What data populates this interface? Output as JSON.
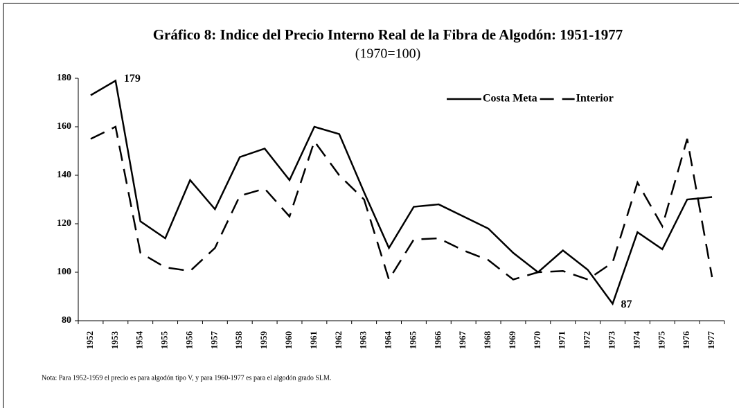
{
  "chart_data": {
    "type": "line",
    "title": "Gráfico 8:  Indice del Precio Interno Real de la Fibra de Algodón: 1951-1977",
    "subtitle": "(1970=100)",
    "categories": [
      "1952",
      "1953",
      "1954",
      "1955",
      "1956",
      "1957",
      "1958",
      "1959",
      "1960",
      "1961",
      "1962",
      "1963",
      "1964",
      "1965",
      "1966",
      "1967",
      "1968",
      "1969",
      "1970",
      "1971",
      "1972",
      "1973",
      "1974",
      "1975",
      "1976",
      "1977"
    ],
    "series": [
      {
        "name": "Costa Meta",
        "color": "#000000",
        "dash": "solid",
        "values": [
          173,
          179,
          121,
          114,
          138,
          126,
          147.5,
          151,
          138,
          160,
          157,
          133,
          110,
          127,
          128,
          123,
          118,
          108,
          100,
          109,
          101,
          87,
          116.5,
          109.5,
          130,
          131
        ]
      },
      {
        "name": "Interior",
        "color": "#000000",
        "dash": "dashed",
        "values": [
          155,
          160,
          108,
          102,
          100.5,
          110,
          131.5,
          134.5,
          123,
          154,
          140,
          130,
          97,
          113.5,
          114,
          109,
          105,
          97,
          100,
          100.5,
          97,
          104,
          137,
          119,
          155,
          98
        ]
      }
    ],
    "annotations": [
      "179",
      "87"
    ],
    "ylim": [
      80,
      180
    ],
    "yticks": [
      80,
      100,
      120,
      140,
      160,
      180
    ],
    "legend": "top-right",
    "note": "Nota:  Para 1952-1959 el precio es para algodón tipo V, y para 1960-1977 es para el algodón grado SLM."
  }
}
